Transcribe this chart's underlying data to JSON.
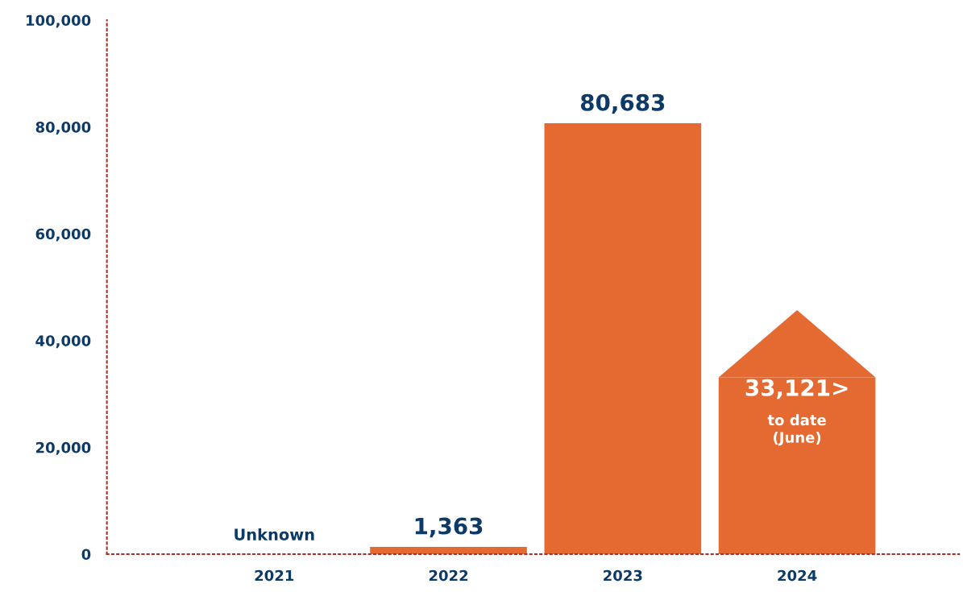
{
  "chart_data": {
    "type": "bar",
    "categories": [
      "2021",
      "2022",
      "2023",
      "2024"
    ],
    "values": [
      null,
      1363,
      80683,
      33121
    ],
    "value_labels": [
      "Unknown",
      "1,363",
      "80,683",
      "33,121>"
    ],
    "color": "#e56a31",
    "ylim": [
      0,
      100000
    ],
    "yticks": [
      {
        "value": 0,
        "label": "0"
      },
      {
        "value": 20000,
        "label": "20,000"
      },
      {
        "value": 40000,
        "label": "40,000"
      },
      {
        "value": 60000,
        "label": "60,000"
      },
      {
        "value": 80000,
        "label": "80,000"
      },
      {
        "value": 100000,
        "label": "100,000"
      }
    ],
    "annotations": [
      "to date\n(June)"
    ],
    "grid": false,
    "legend": false
  }
}
